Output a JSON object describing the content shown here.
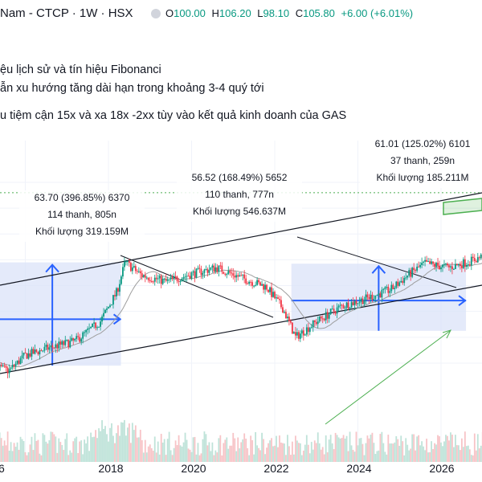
{
  "header": {
    "symbol": "Nam - CTCP · 1W · HSX",
    "open_label": "O",
    "open": "100.00",
    "high_label": "H",
    "high": "106.20",
    "low_label": "L",
    "low": "98.10",
    "close_label": "C",
    "close": "105.80",
    "change": "+6.00 (+6.01%)"
  },
  "notes": [
    "ệu lịch sử và tín hiệu Fibonanci",
    "ẫn xu hướng tăng dài hạn trong khoảng 3-4 quý tới",
    "u tiệm cận 15x và xa 18x -2xx tùy vào kết quả kinh doanh của GAS"
  ],
  "colors": {
    "up": "#089981",
    "down": "#f23645",
    "projection_fill": "#dbe3f8",
    "projection_arrow": "#2962ff",
    "channel": "#131722",
    "target_box": "#4caf50",
    "volume_up": "#bfe3d9",
    "volume_down": "#f7c4c7",
    "ma": "#9e9e9e"
  },
  "chart_data": {
    "type": "candlestick",
    "timeframe": "1W",
    "x_ticks": [
      "6",
      "2018",
      "2020",
      "2022",
      "2024",
      "2026"
    ],
    "last_ohlc": {
      "open": 100.0,
      "high": 106.2,
      "low": 98.1,
      "close": 105.8,
      "change": 6.0,
      "change_pct": 6.01
    },
    "price_path": [
      {
        "x": 2016.0,
        "y": 48
      },
      {
        "x": 2016.4,
        "y": 42
      },
      {
        "x": 2016.8,
        "y": 34
      },
      {
        "x": 2017.0,
        "y": 46
      },
      {
        "x": 2017.3,
        "y": 52
      },
      {
        "x": 2017.6,
        "y": 57
      },
      {
        "x": 2017.9,
        "y": 72
      },
      {
        "x": 2018.1,
        "y": 95
      },
      {
        "x": 2018.2,
        "y": 118
      },
      {
        "x": 2018.4,
        "y": 108
      },
      {
        "x": 2018.7,
        "y": 103
      },
      {
        "x": 2019.0,
        "y": 109
      },
      {
        "x": 2019.3,
        "y": 114
      },
      {
        "x": 2019.6,
        "y": 106
      },
      {
        "x": 2019.9,
        "y": 99
      },
      {
        "x": 2020.1,
        "y": 82
      },
      {
        "x": 2020.25,
        "y": 60
      },
      {
        "x": 2020.5,
        "y": 72
      },
      {
        "x": 2020.8,
        "y": 84
      },
      {
        "x": 2021.1,
        "y": 90
      },
      {
        "x": 2021.4,
        "y": 97
      },
      {
        "x": 2021.6,
        "y": 108
      },
      {
        "x": 2021.8,
        "y": 117
      },
      {
        "x": 2022.1,
        "y": 114
      },
      {
        "x": 2022.4,
        "y": 120
      },
      {
        "x": 2022.6,
        "y": 125
      },
      {
        "x": 2022.9,
        "y": 117
      },
      {
        "x": 2023.2,
        "y": 110
      },
      {
        "x": 2023.5,
        "y": 106
      },
      {
        "x": 2023.8,
        "y": 109
      },
      {
        "x": 2024.1,
        "y": 104
      },
      {
        "x": 2024.4,
        "y": 107
      },
      {
        "x": 2024.7,
        "y": 103
      },
      {
        "x": 2025.0,
        "y": 96
      },
      {
        "x": 2025.2,
        "y": 84
      },
      {
        "x": 2025.4,
        "y": 92
      },
      {
        "x": 2025.6,
        "y": 98
      },
      {
        "x": 2025.75,
        "y": 108
      },
      {
        "x": 2025.85,
        "y": 150
      },
      {
        "x": 2025.92,
        "y": 176
      },
      {
        "x": 2026.0,
        "y": 172
      }
    ],
    "fibonacci_projections": [
      {
        "line1": "63.70 (396.85%) 6370",
        "line2": "114 thanh, 805n",
        "line3": "Khối lượng 319.159M"
      },
      {
        "line1": "56.52 (168.49%) 5652",
        "line2": "110 thanh, 777n",
        "line3": "Khối lượng 546.637M"
      },
      {
        "line1": "61.01 (125.02%) 6101",
        "line2": "37 thanh, 259n",
        "line3": "Khối lượng 185.211M"
      }
    ],
    "grid": true
  }
}
